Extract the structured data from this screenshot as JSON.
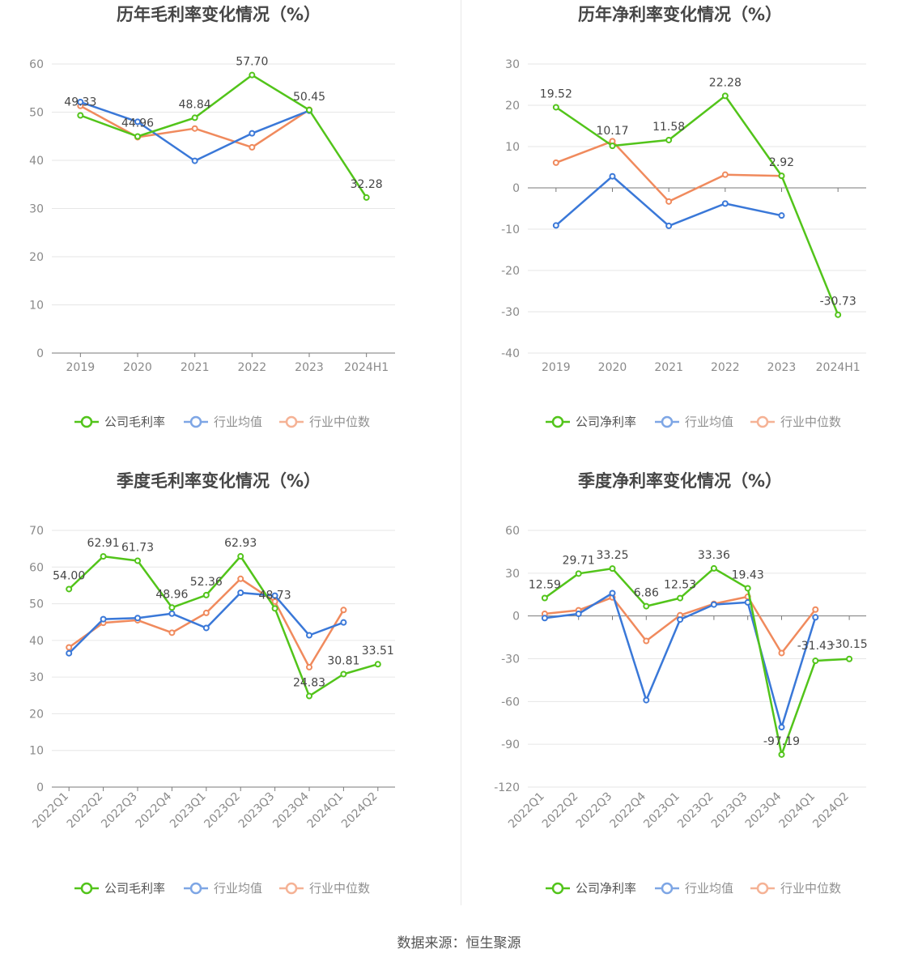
{
  "footer": {
    "source": "数据来源：恒生聚源"
  },
  "colors": {
    "company": "#52c41a",
    "industry_avg": "#3a78d8",
    "industry_median": "#f08a5d"
  },
  "chart_data": [
    {
      "type": "line",
      "title": "历年毛利率变化情况（%）",
      "categories": [
        "2019",
        "2020",
        "2021",
        "2022",
        "2023",
        "2024H1"
      ],
      "ylim": [
        0,
        60
      ],
      "yticks": [
        0,
        10,
        20,
        30,
        40,
        50,
        60
      ],
      "grid": true,
      "legend": "bottom",
      "series": [
        {
          "name": "公司毛利率",
          "key": "company",
          "values": [
            49.33,
            44.96,
            48.84,
            57.7,
            50.45,
            32.28
          ],
          "labels": [
            "49.33",
            "44.96",
            "48.84",
            "57.70",
            "50.45",
            "32.28"
          ]
        },
        {
          "name": "行业均值",
          "key": "industry_avg",
          "values": [
            52.1,
            48.0,
            39.9,
            45.6,
            50.3,
            null
          ]
        },
        {
          "name": "行业中位数",
          "key": "industry_median",
          "values": [
            51.3,
            44.8,
            46.6,
            42.7,
            50.5,
            null
          ]
        }
      ]
    },
    {
      "type": "line",
      "title": "历年净利率变化情况（%）",
      "categories": [
        "2019",
        "2020",
        "2021",
        "2022",
        "2023",
        "2024H1"
      ],
      "ylim": [
        -40,
        30
      ],
      "yticks": [
        -40,
        -30,
        -20,
        -10,
        0,
        10,
        20,
        30
      ],
      "grid": true,
      "legend": "bottom",
      "series": [
        {
          "name": "公司净利率",
          "key": "company",
          "values": [
            19.52,
            10.17,
            11.58,
            22.28,
            2.92,
            -30.73
          ],
          "labels": [
            "19.52",
            "10.17",
            "11.58",
            "22.28",
            "2.92",
            "-30.73"
          ]
        },
        {
          "name": "行业均值",
          "key": "industry_avg",
          "values": [
            -9.1,
            2.8,
            -9.2,
            -3.8,
            -6.7,
            null
          ]
        },
        {
          "name": "行业中位数",
          "key": "industry_median",
          "values": [
            6.1,
            11.3,
            -3.3,
            3.2,
            2.9,
            null
          ]
        }
      ]
    },
    {
      "type": "line",
      "title": "季度毛利率变化情况（%）",
      "categories": [
        "2022Q1",
        "2022Q2",
        "2022Q3",
        "2022Q4",
        "2023Q1",
        "2023Q2",
        "2023Q3",
        "2023Q4",
        "2024Q1",
        "2024Q2"
      ],
      "ylim": [
        0,
        70
      ],
      "yticks": [
        0,
        10,
        20,
        30,
        40,
        50,
        60,
        70
      ],
      "grid": true,
      "legend": "bottom",
      "series": [
        {
          "name": "公司毛利率",
          "key": "company",
          "values": [
            54.0,
            62.91,
            61.73,
            48.96,
            52.36,
            62.93,
            48.73,
            24.83,
            30.81,
            33.51
          ],
          "labels": [
            "54.00",
            "62.91",
            "61.73",
            "48.96",
            "52.36",
            "62.93",
            "48.73",
            "24.83",
            "30.81",
            "33.51"
          ]
        },
        {
          "name": "行业均值",
          "key": "industry_avg",
          "values": [
            36.5,
            45.8,
            46.1,
            47.3,
            43.4,
            53.0,
            52.2,
            41.4,
            44.9,
            null
          ]
        },
        {
          "name": "行业中位数",
          "key": "industry_median",
          "values": [
            38.1,
            44.8,
            45.5,
            42.1,
            47.5,
            56.8,
            50.6,
            32.7,
            48.3,
            null
          ]
        }
      ]
    },
    {
      "type": "line",
      "title": "季度净利率变化情况（%）",
      "categories": [
        "2022Q1",
        "2022Q2",
        "2022Q3",
        "2022Q4",
        "2023Q1",
        "2023Q2",
        "2023Q3",
        "2023Q4",
        "2024Q1",
        "2024Q2"
      ],
      "ylim": [
        -120,
        60
      ],
      "yticks": [
        -120,
        -90,
        -60,
        -30,
        0,
        30,
        60
      ],
      "grid": true,
      "legend": "bottom",
      "series": [
        {
          "name": "公司净利率",
          "key": "company",
          "values": [
            12.59,
            29.71,
            33.25,
            6.86,
            12.53,
            33.36,
            19.43,
            -97.19,
            -31.43,
            -30.15
          ],
          "labels": [
            "12.59",
            "29.71",
            "33.25",
            "6.86",
            "12.53",
            "33.36",
            "19.43",
            "-97.19",
            "-31.43",
            "-30.15"
          ]
        },
        {
          "name": "行业均值",
          "key": "industry_avg",
          "values": [
            -1.5,
            1.5,
            16.0,
            -59.0,
            -2.5,
            8.0,
            9.5,
            -78.0,
            -1.0,
            null
          ]
        },
        {
          "name": "行业中位数",
          "key": "industry_median",
          "values": [
            1.5,
            4.0,
            13.0,
            -17.5,
            0.5,
            8.5,
            13.5,
            -26.0,
            4.5,
            null
          ]
        }
      ]
    }
  ]
}
